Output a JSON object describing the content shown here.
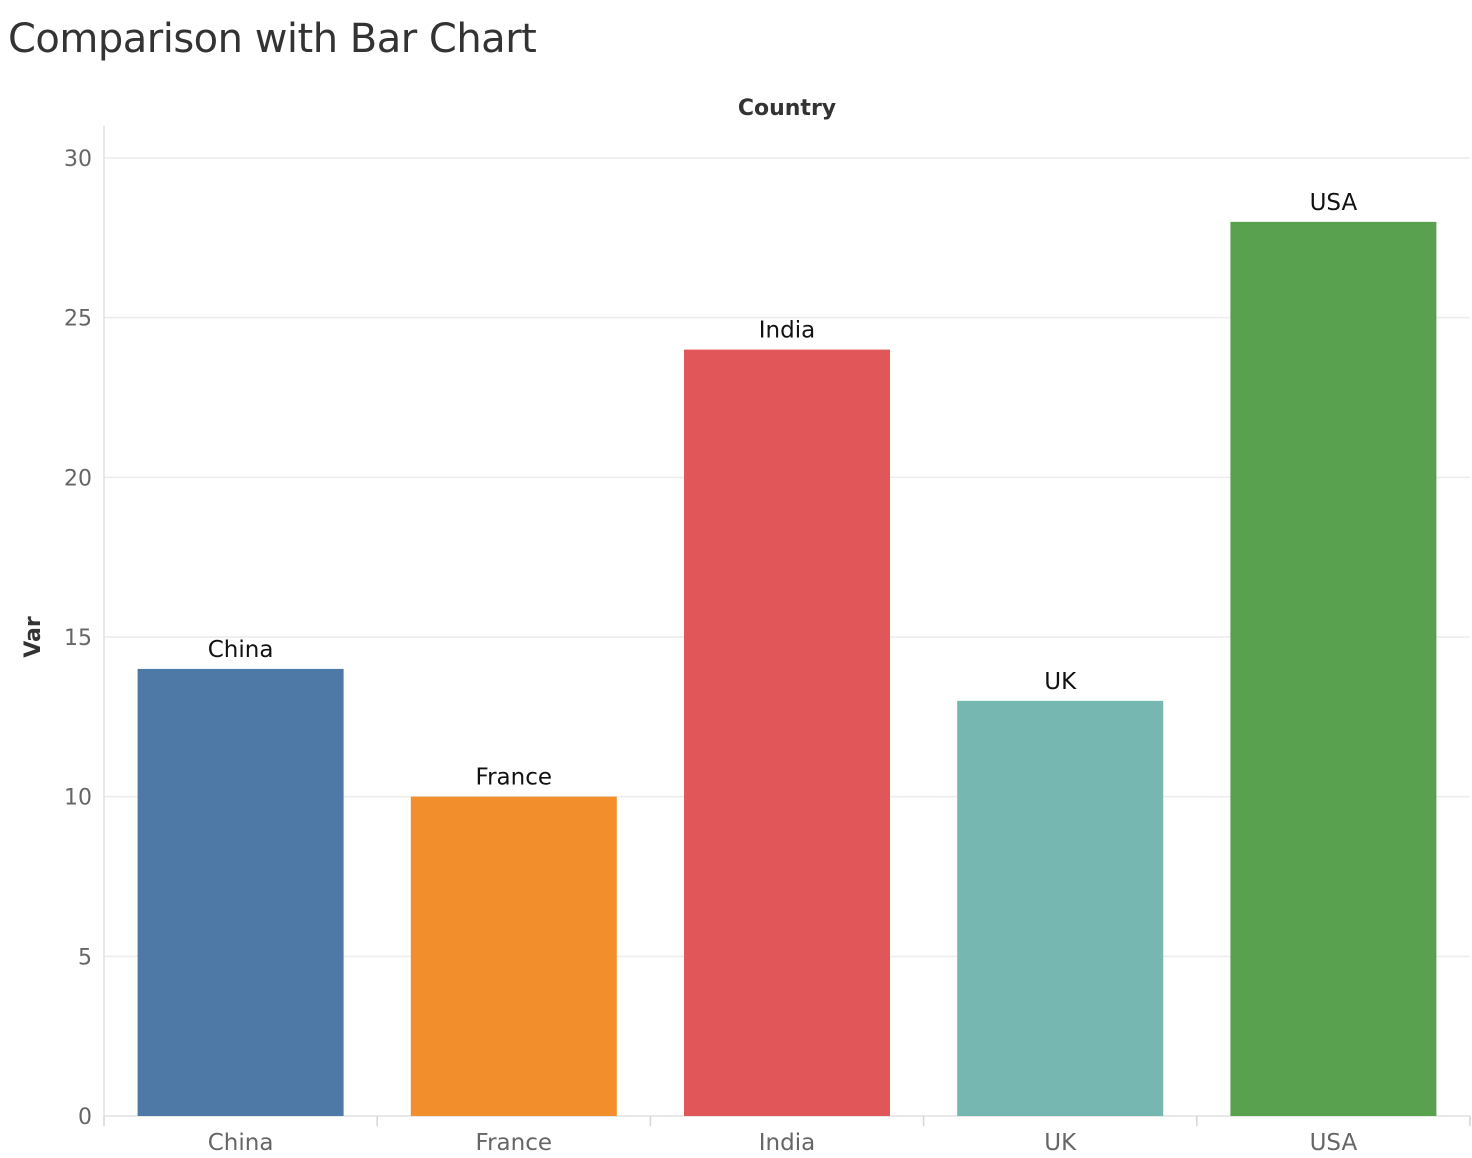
{
  "page": {
    "title": "Comparison with Bar Chart"
  },
  "chart_data": {
    "type": "bar",
    "title": "Comparison with Bar Chart",
    "header_label": "Country",
    "xlabel": "",
    "ylabel": "Var",
    "categories": [
      "China",
      "France",
      "India",
      "UK",
      "USA"
    ],
    "values": [
      14,
      10,
      24,
      13,
      28
    ],
    "data_labels": [
      "China",
      "France",
      "India",
      "UK",
      "USA"
    ],
    "colors": [
      "#4e79a7",
      "#f28e2b",
      "#e15759",
      "#76b7b2",
      "#59a14f"
    ],
    "ylim": [
      0,
      30
    ],
    "yticks": [
      0,
      5,
      10,
      15,
      20,
      25,
      30
    ],
    "grid": true,
    "legend": "none"
  }
}
